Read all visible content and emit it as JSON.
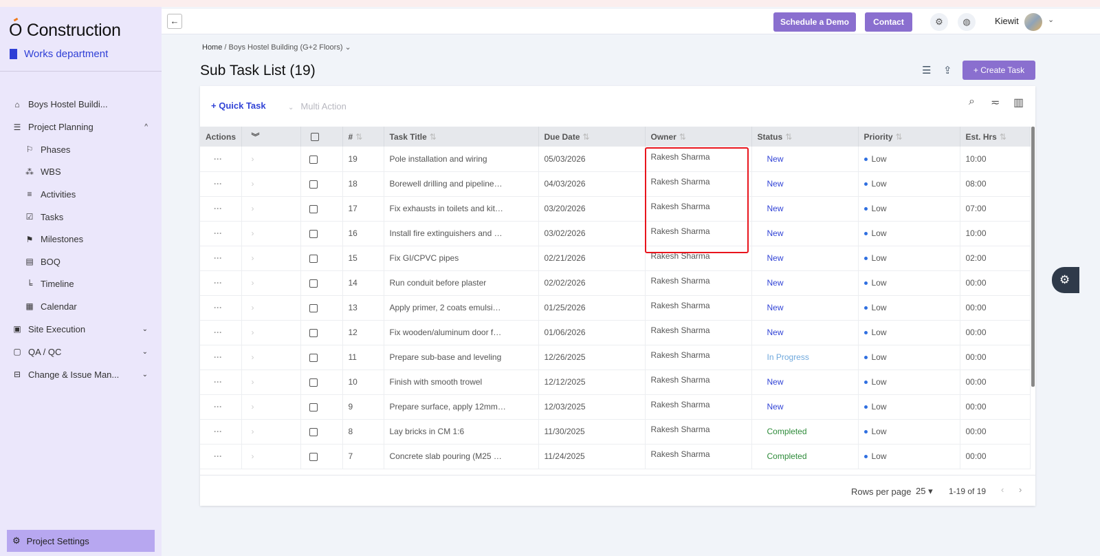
{
  "brand": {
    "logo": "Construction",
    "logo_letter": "O",
    "department": "Works department"
  },
  "sidebar": {
    "items": [
      {
        "label": "Boys Hostel Buildi...",
        "icon": "home-icon",
        "glyph": "⌂",
        "sub": false,
        "chev": ""
      },
      {
        "label": "Project Planning",
        "icon": "document-icon",
        "glyph": "☰",
        "sub": false,
        "chev": "^"
      },
      {
        "label": "Phases",
        "icon": "flag-icon",
        "glyph": "⚐",
        "sub": true,
        "chev": ""
      },
      {
        "label": "WBS",
        "icon": "hierarchy-icon",
        "glyph": "⁂",
        "sub": true,
        "chev": ""
      },
      {
        "label": "Activities",
        "icon": "list-icon",
        "glyph": "≡",
        "sub": true,
        "chev": ""
      },
      {
        "label": "Tasks",
        "icon": "checklist-icon",
        "glyph": "☑",
        "sub": true,
        "chev": ""
      },
      {
        "label": "Milestones",
        "icon": "signpost-icon",
        "glyph": "⚑",
        "sub": true,
        "chev": ""
      },
      {
        "label": "BOQ",
        "icon": "file-icon",
        "glyph": "▤",
        "sub": true,
        "chev": ""
      },
      {
        "label": "Timeline",
        "icon": "timeline-icon",
        "glyph": "╘",
        "sub": true,
        "chev": ""
      },
      {
        "label": "Calendar",
        "icon": "calendar-icon",
        "glyph": "▦",
        "sub": true,
        "chev": ""
      },
      {
        "label": "Site Execution",
        "icon": "site-icon",
        "glyph": "▣",
        "sub": false,
        "chev": "⌄"
      },
      {
        "label": "QA / QC",
        "icon": "clipboard-icon",
        "glyph": "▢",
        "sub": false,
        "chev": "⌄"
      },
      {
        "label": "Change & Issue Man...",
        "icon": "change-icon",
        "glyph": "⊟",
        "sub": false,
        "chev": "⌄"
      }
    ],
    "settings": "Project Settings"
  },
  "topbar": {
    "demo": "Schedule a Demo",
    "contact": "Contact",
    "user": "Kiewit"
  },
  "breadcrumb": {
    "home": "Home",
    "sep": " / ",
    "project": "Boys Hostel Building (G+2 Floors)"
  },
  "page": {
    "title": "Sub Task List (19)",
    "create": "Create Task"
  },
  "toolbar": {
    "quick_task": "Quick Task",
    "multi_action": "Multi Action"
  },
  "table": {
    "headers": [
      "Actions",
      "",
      "",
      "#",
      "Task Title",
      "Due Date",
      "Owner",
      "Status",
      "Priority",
      "Est. Hrs"
    ],
    "rows": [
      [
        "19",
        "Pole installation and wiring",
        "05/03/2026",
        "Rakesh Sharma",
        "New",
        "Low",
        "10:00"
      ],
      [
        "18",
        "Borewell drilling and pipeline…",
        "04/03/2026",
        "Rakesh Sharma",
        "New",
        "Low",
        "08:00"
      ],
      [
        "17",
        "Fix exhausts in toilets and kit…",
        "03/20/2026",
        "Rakesh Sharma",
        "New",
        "Low",
        "07:00"
      ],
      [
        "16",
        "Install fire extinguishers and …",
        "03/02/2026",
        "Rakesh Sharma",
        "New",
        "Low",
        "10:00"
      ],
      [
        "15",
        "Fix GI/CPVC pipes",
        "02/21/2026",
        "Rakesh Sharma",
        "New",
        "Low",
        "02:00"
      ],
      [
        "14",
        "Run conduit before plaster",
        "02/02/2026",
        "Rakesh Sharma",
        "New",
        "Low",
        "00:00"
      ],
      [
        "13",
        "Apply primer, 2 coats emulsi…",
        "01/25/2026",
        "Rakesh Sharma",
        "New",
        "Low",
        "00:00"
      ],
      [
        "12",
        "Fix wooden/aluminum door f…",
        "01/06/2026",
        "Rakesh Sharma",
        "New",
        "Low",
        "00:00"
      ],
      [
        "11",
        "Prepare sub-base and leveling",
        "12/26/2025",
        "Rakesh Sharma",
        "In Progress",
        "Low",
        "00:00"
      ],
      [
        "10",
        "Finish with smooth trowel",
        "12/12/2025",
        "Rakesh Sharma",
        "New",
        "Low",
        "00:00"
      ],
      [
        "9",
        "Prepare surface, apply 12mm…",
        "12/03/2025",
        "Rakesh Sharma",
        "New",
        "Low",
        "00:00"
      ],
      [
        "8",
        "Lay bricks in CM 1:6",
        "11/30/2025",
        "Rakesh Sharma",
        "Completed",
        "Low",
        "00:00"
      ],
      [
        "7",
        "Concrete slab pouring (M25 …",
        "11/24/2025",
        "Rakesh Sharma",
        "Completed",
        "Low",
        "00:00"
      ]
    ]
  },
  "footer": {
    "rows_label": "Rows per page",
    "rows_value": "25",
    "range": "1-19 of 19"
  },
  "colors": {
    "accent": "#8a6fcf",
    "link": "#3143d6",
    "highlight": "#e8141c"
  }
}
